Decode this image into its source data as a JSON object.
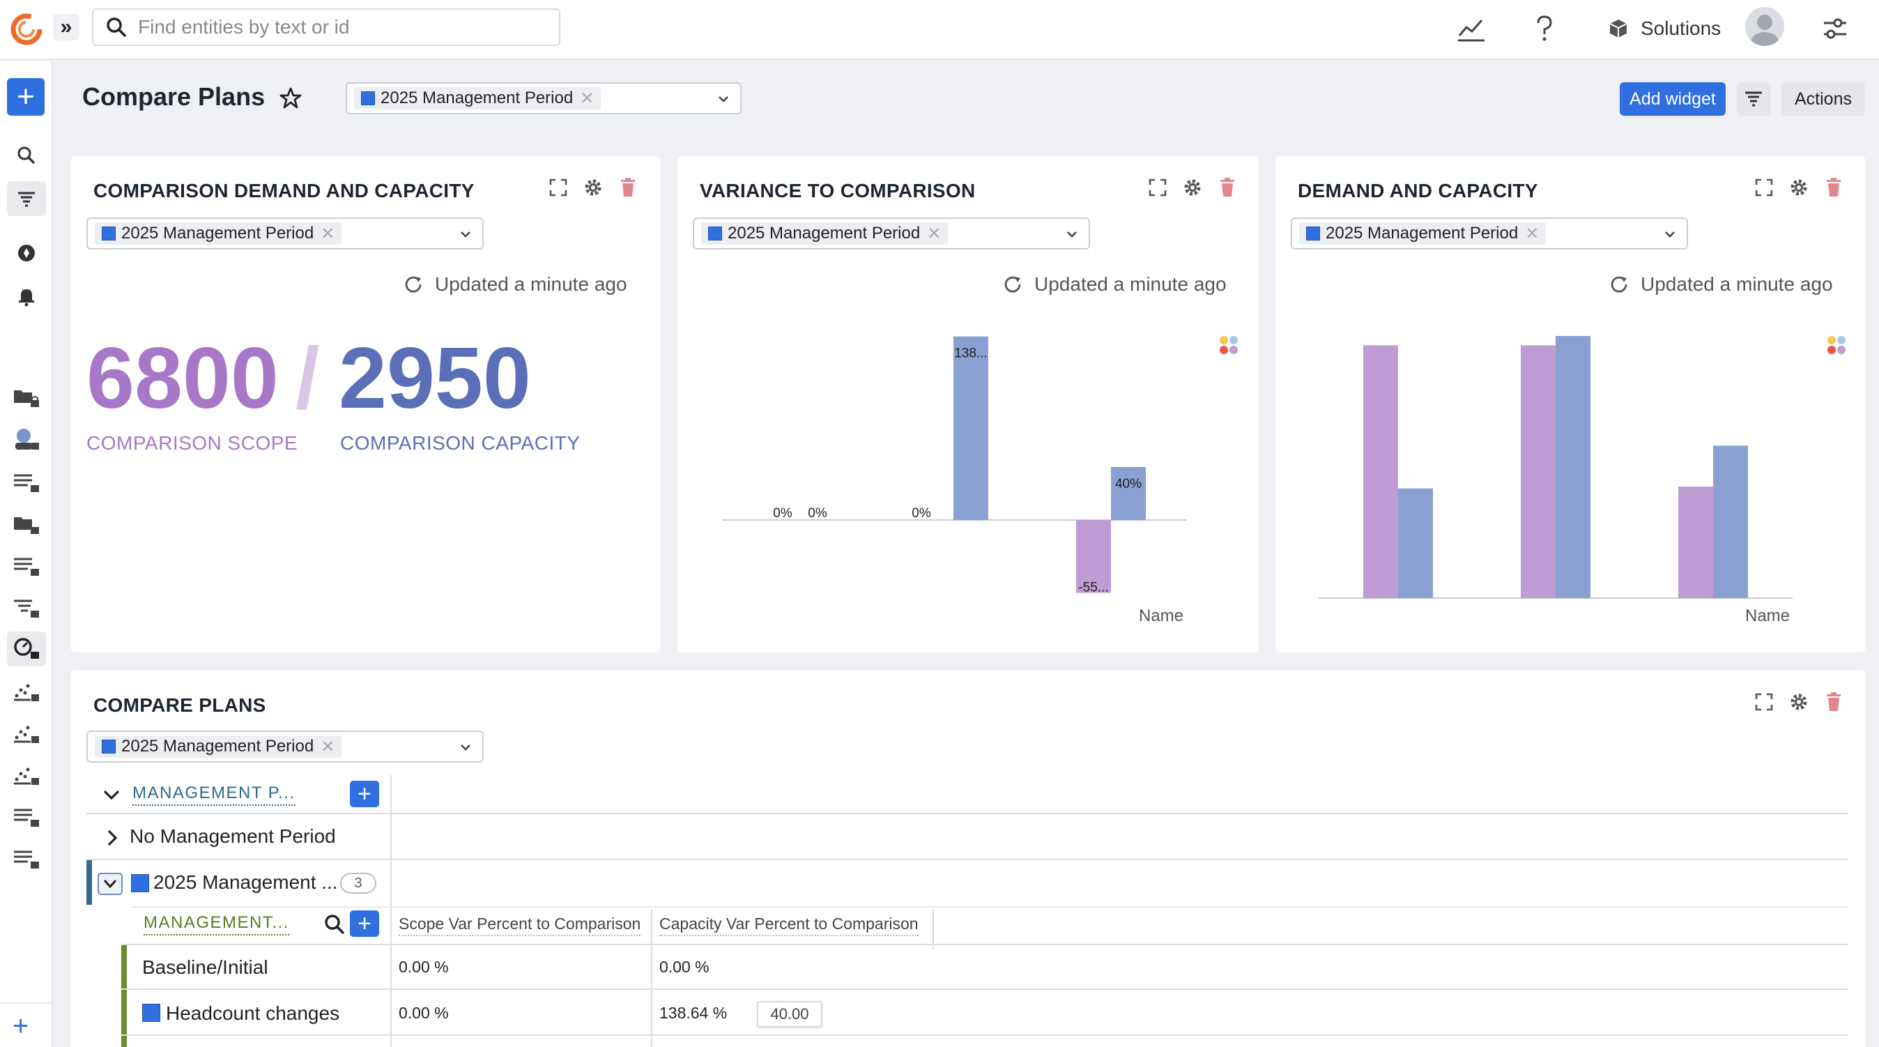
{
  "search": {
    "placeholder": "Find entities by text or id"
  },
  "topbar": {
    "solutions_label": "Solutions"
  },
  "page": {
    "title": "Compare Plans"
  },
  "period_chip": "2025 Management Period",
  "toolbar": {
    "add_widget": "Add widget",
    "actions": "Actions"
  },
  "widgets": {
    "comparison": {
      "title": "COMPARISON DEMAND AND CAPACITY",
      "updated": "Updated a minute ago",
      "scope_value": "6800",
      "slash": "/",
      "capacity_value": "2950",
      "scope_label": "COMPARISON SCOPE",
      "capacity_label": "COMPARISON CAPACITY"
    },
    "variance": {
      "title": "VARIANCE TO COMPARISON",
      "updated": "Updated a minute ago",
      "xlabel": "Name"
    },
    "demand": {
      "title": "DEMAND AND CAPACITY",
      "updated": "Updated a minute ago",
      "xlabel": "Name"
    },
    "compare_plans": {
      "title": "COMPARE PLANS",
      "group_header": "MANAGEMENT P...",
      "rows": {
        "no_period": "No Management Period",
        "period_2025": "2025 Management ...",
        "period_count": "3"
      },
      "sub_header": "MANAGEMENT...",
      "columns": [
        "Scope Var Percent to Comparison",
        "Capacity Var Percent to Comparison"
      ],
      "sub_rows": [
        {
          "name": "Baseline/Initial",
          "scope": "0.00 %",
          "capacity": "0.00 %"
        },
        {
          "name": "Headcount changes",
          "scope": "0.00 %",
          "capacity": "138.64 %"
        }
      ],
      "tooltip_value": "40.00"
    }
  },
  "colors": {
    "accent": "#2f6fe0",
    "scope": "#bf9cd3",
    "capacity": "#8aa0d2"
  },
  "chart_data": [
    {
      "type": "bar",
      "title": "VARIANCE TO COMPARISON",
      "xlabel": "Name",
      "ylabel": "",
      "groups": [
        {
          "labels": [
            "0%",
            "0%"
          ],
          "values": [
            0,
            0
          ]
        },
        {
          "labels": [
            "",
            "138..."
          ],
          "values": [
            0,
            138.64
          ]
        },
        {
          "labels": [
            "-55...",
            "40%"
          ],
          "values": [
            -55,
            40
          ]
        }
      ],
      "zero_label": "0%",
      "series_colors": [
        "#bf9cd3",
        "#8aa0d2"
      ]
    },
    {
      "type": "bar",
      "title": "DEMAND AND CAPACITY",
      "xlabel": "Name",
      "ylabel": "",
      "groups": [
        {
          "values": [
            6800,
            2950
          ]
        },
        {
          "values": [
            6800,
            7050
          ]
        },
        {
          "values": [
            3000,
            4100
          ]
        }
      ],
      "series_colors": [
        "#bf9cd3",
        "#8aa0d2"
      ]
    }
  ]
}
